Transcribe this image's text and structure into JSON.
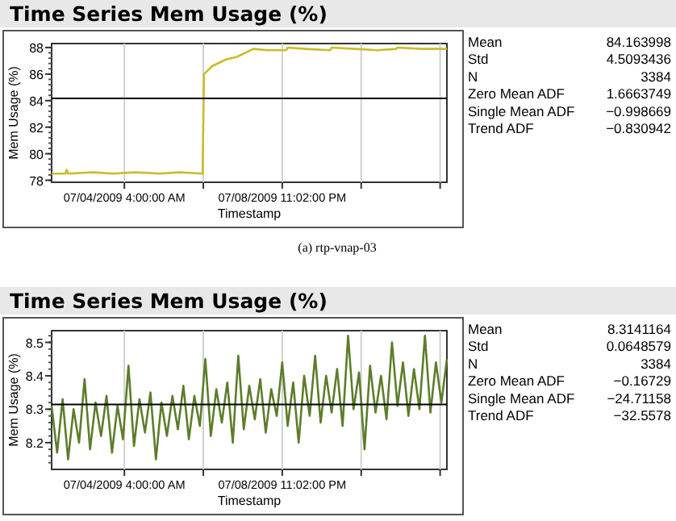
{
  "chart_data": [
    {
      "type": "line",
      "title": "Time Series Mem Usage (%)",
      "xlabel": "Timestamp",
      "ylabel": "Mem Usage (%)",
      "grid": "x",
      "xlim": [
        "2009-07-01T23:00",
        "2009-07-13T23:00"
      ],
      "ylim": [
        77.85,
        88.3
      ],
      "xticks": [
        {
          "value": "2009-07-04T04:00",
          "label": "07/04/2009 4:00:00 AM"
        },
        {
          "value": "2009-07-06T13:31",
          "label": null
        },
        {
          "value": "2009-07-08T23:02",
          "label": "07/08/2009 11:02:00 PM"
        },
        {
          "value": "2009-07-11T08:33",
          "label": null
        },
        {
          "value": "2009-07-13T18:04",
          "label": null
        }
      ],
      "yticks": [
        78,
        80,
        82,
        84,
        86,
        88
      ],
      "ref_lines": [
        {
          "axis": "y",
          "value": 84.163998,
          "color": "#000000"
        }
      ],
      "annotations": [
        "(a) rtp-vnap-03"
      ],
      "series": [
        {
          "color": "#c9bd2a",
          "x": [
            "2009-07-01T23:00",
            "2009-07-02T09:00",
            "2009-07-02T10:00",
            "2009-07-02T11:00",
            "2009-07-03T05:00",
            "2009-07-03T20:00",
            "2009-07-04T12:00",
            "2009-07-05T06:00",
            "2009-07-05T20:00",
            "2009-07-06T13:00",
            "2009-07-06T14:00",
            "2009-07-06T20:00",
            "2009-07-07T06:00",
            "2009-07-07T14:00",
            "2009-07-08T02:00",
            "2009-07-08T12:00",
            "2009-07-09T02:00",
            "2009-07-09T03:00",
            "2009-07-09T16:00",
            "2009-07-10T10:00",
            "2009-07-10T11:00",
            "2009-07-11T04:00",
            "2009-07-11T20:00",
            "2009-07-12T10:00",
            "2009-07-12T11:00",
            "2009-07-13T04:00",
            "2009-07-13T23:00"
          ],
          "values": [
            78.5,
            78.5,
            78.8,
            78.5,
            78.6,
            78.5,
            78.6,
            78.5,
            78.6,
            78.5,
            86.0,
            86.6,
            87.1,
            87.3,
            87.9,
            87.8,
            87.8,
            88.0,
            87.9,
            87.8,
            88.0,
            87.9,
            87.8,
            87.9,
            88.0,
            87.9,
            87.9
          ]
        }
      ]
    },
    {
      "type": "other",
      "categories": [
        "Mean",
        "Std",
        "N",
        "Zero Mean ADF",
        "Single Mean ADF",
        "Trend ADF"
      ],
      "values": [
        84.163998,
        4.5093436,
        3384,
        1.6663749,
        -0.998669,
        -0.830942
      ],
      "data_labels": true
    },
    {
      "type": "line",
      "title": "Time Series Mem Usage (%)",
      "xlabel": "Timestamp",
      "ylabel": "Mem Usage (%)",
      "grid": "x",
      "xlim": [
        "2009-07-01T23:00",
        "2009-07-13T23:00"
      ],
      "ylim": [
        8.12,
        8.535
      ],
      "xticks": [
        {
          "value": "2009-07-04T04:00",
          "label": "07/04/2009 4:00:00 AM"
        },
        {
          "value": "2009-07-06T13:31",
          "label": null
        },
        {
          "value": "2009-07-08T23:02",
          "label": "07/08/2009 11:02:00 PM"
        },
        {
          "value": "2009-07-11T08:33",
          "label": null
        },
        {
          "value": "2009-07-13T18:04",
          "label": null
        }
      ],
      "yticks": [
        8.2,
        8.3,
        8.4,
        8.5
      ],
      "ref_lines": [
        {
          "axis": "y",
          "value": 8.3141164,
          "color": "#000000"
        }
      ],
      "x": [
        "2009-07-01T23:00",
        "2009-07-02T03:00",
        "2009-07-02T07:00",
        "2009-07-02T11:00",
        "2009-07-02T15:00",
        "2009-07-02T19:00",
        "2009-07-02T23:00",
        "2009-07-03T03:00",
        "2009-07-03T07:00",
        "2009-07-03T11:00",
        "2009-07-03T15:00",
        "2009-07-03T19:00",
        "2009-07-03T23:00",
        "2009-07-04T03:00",
        "2009-07-04T07:00",
        "2009-07-04T11:00",
        "2009-07-04T15:00",
        "2009-07-04T19:00",
        "2009-07-04T23:00",
        "2009-07-05T03:00",
        "2009-07-05T07:00",
        "2009-07-05T11:00",
        "2009-07-05T15:00",
        "2009-07-05T19:00",
        "2009-07-05T23:00",
        "2009-07-06T03:00",
        "2009-07-06T07:00",
        "2009-07-06T11:00",
        "2009-07-06T15:00",
        "2009-07-06T19:00",
        "2009-07-06T23:00",
        "2009-07-07T03:00",
        "2009-07-07T07:00",
        "2009-07-07T11:00",
        "2009-07-07T15:00",
        "2009-07-07T19:00",
        "2009-07-07T23:00",
        "2009-07-08T03:00",
        "2009-07-08T07:00",
        "2009-07-08T11:00",
        "2009-07-08T15:00",
        "2009-07-08T19:00",
        "2009-07-08T23:00",
        "2009-07-09T03:00",
        "2009-07-09T07:00",
        "2009-07-09T11:00",
        "2009-07-09T15:00",
        "2009-07-09T19:00",
        "2009-07-09T23:00",
        "2009-07-10T03:00",
        "2009-07-10T07:00",
        "2009-07-10T11:00",
        "2009-07-10T15:00",
        "2009-07-10T19:00",
        "2009-07-10T23:00",
        "2009-07-11T03:00",
        "2009-07-11T07:00",
        "2009-07-11T11:00",
        "2009-07-11T15:00",
        "2009-07-11T19:00",
        "2009-07-11T23:00",
        "2009-07-12T03:00",
        "2009-07-12T07:00",
        "2009-07-12T11:00",
        "2009-07-12T15:00",
        "2009-07-12T19:00",
        "2009-07-12T23:00",
        "2009-07-13T03:00",
        "2009-07-13T07:00",
        "2009-07-13T11:00",
        "2009-07-13T15:00",
        "2009-07-13T19:00",
        "2009-07-13T23:00"
      ],
      "series": [
        {
          "color": "#5d7d2b",
          "values": [
            8.31,
            8.17,
            8.33,
            8.15,
            8.3,
            8.2,
            8.39,
            8.18,
            8.32,
            8.22,
            8.34,
            8.17,
            8.31,
            8.21,
            8.43,
            8.19,
            8.33,
            8.23,
            8.35,
            8.15,
            8.32,
            8.22,
            8.34,
            8.24,
            8.37,
            8.21,
            8.34,
            8.25,
            8.45,
            8.22,
            8.36,
            8.26,
            8.38,
            8.2,
            8.46,
            8.24,
            8.37,
            8.27,
            8.39,
            8.23,
            8.36,
            8.28,
            8.44,
            8.25,
            8.38,
            8.2,
            8.4,
            8.28,
            8.46,
            8.26,
            8.4,
            8.29,
            8.42,
            8.25,
            8.52,
            8.3,
            8.41,
            8.18,
            8.43,
            8.29,
            8.4,
            8.27,
            8.5,
            8.31,
            8.44,
            8.28,
            8.42,
            8.3,
            8.52,
            8.29,
            8.44,
            8.32,
            8.45
          ]
        }
      ]
    },
    {
      "type": "other",
      "categories": [
        "Mean",
        "Std",
        "N",
        "Zero Mean ADF",
        "Single Mean ADF",
        "Trend ADF"
      ],
      "values": [
        8.3141164,
        0.0648579,
        3384,
        -0.16729,
        -24.71158,
        -32.5578
      ],
      "data_labels": true
    }
  ]
}
